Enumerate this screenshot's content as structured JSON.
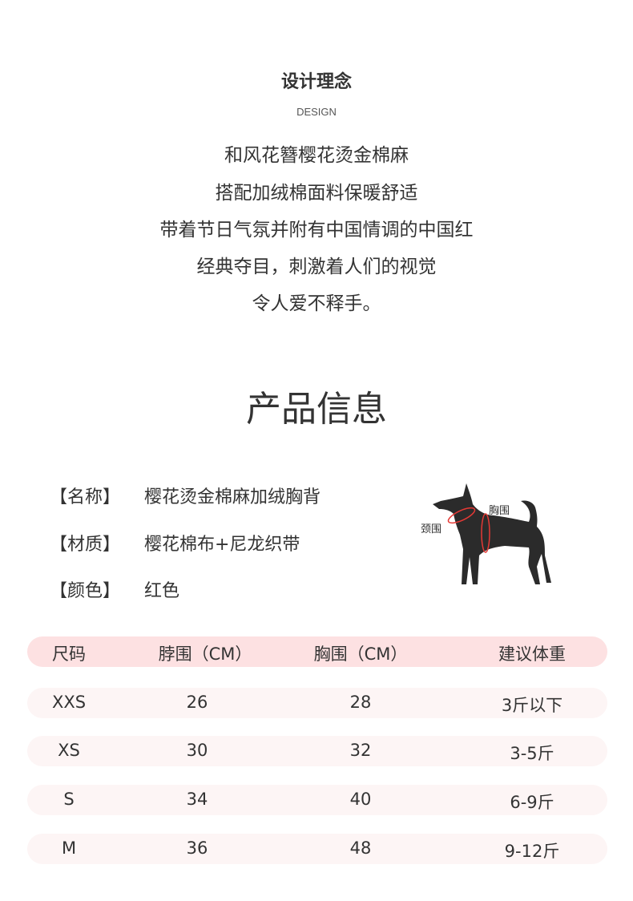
{
  "design": {
    "title": "设计理念",
    "subtitle": "DESIGN",
    "lines": [
      "和风花簪樱花烫金棉麻",
      "搭配加绒棉面料保暖舒适",
      "带着节日气氛并附有中国情调的中国红",
      "经典夺目，刺激着人们的视觉",
      "令人爱不释手。"
    ]
  },
  "product": {
    "title": "产品信息",
    "fields": [
      {
        "label": "【名称】",
        "value": "樱花烫金棉麻加绒胸背"
      },
      {
        "label": "【材质】",
        "value": "樱花棉布+尼龙织带"
      },
      {
        "label": "【颜色】",
        "value": "红色"
      }
    ],
    "diagram": {
      "chest_label": "胸围",
      "neck_label": "颈围",
      "accent": "#e53935"
    }
  },
  "size_table": {
    "headers": [
      "尺码",
      "脖围（CM）",
      "胸围（CM）",
      "建议体重"
    ],
    "rows": [
      [
        "XXS",
        "26",
        "28",
        "3斤以下"
      ],
      [
        "XS",
        "30",
        "32",
        "3-5斤"
      ],
      [
        "S",
        "34",
        "40",
        "6-9斤"
      ],
      [
        "M",
        "36",
        "48",
        "9-12斤"
      ]
    ],
    "colors": {
      "header_bg": "#fde1e2",
      "row_bg": "#fdf5f5"
    }
  }
}
